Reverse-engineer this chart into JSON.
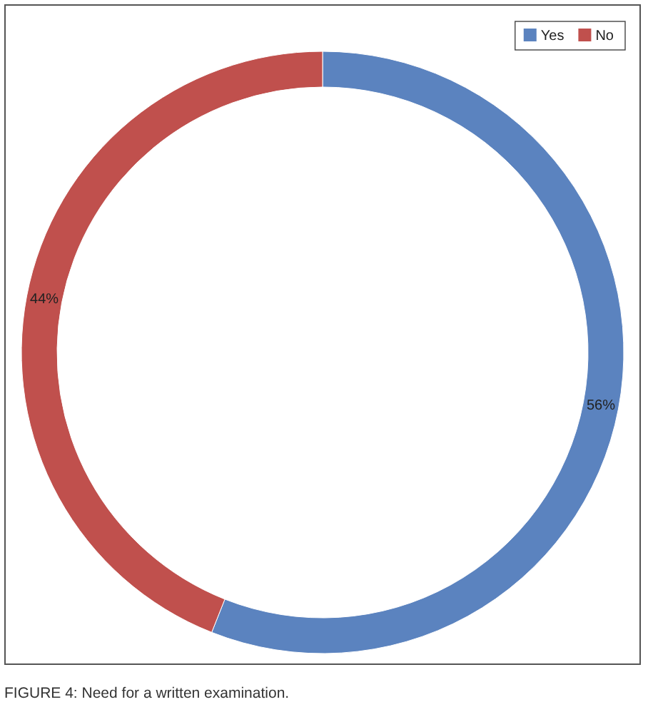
{
  "chart_data": {
    "type": "donut",
    "categories": [
      "Yes",
      "No"
    ],
    "values": [
      56,
      44
    ],
    "colors": [
      "#5b83bf",
      "#c0504d"
    ],
    "value_labels": [
      "56%",
      "44%"
    ],
    "legend": "top right",
    "annotations": [
      "FIGURE 4: Need for a written examination."
    ]
  }
}
